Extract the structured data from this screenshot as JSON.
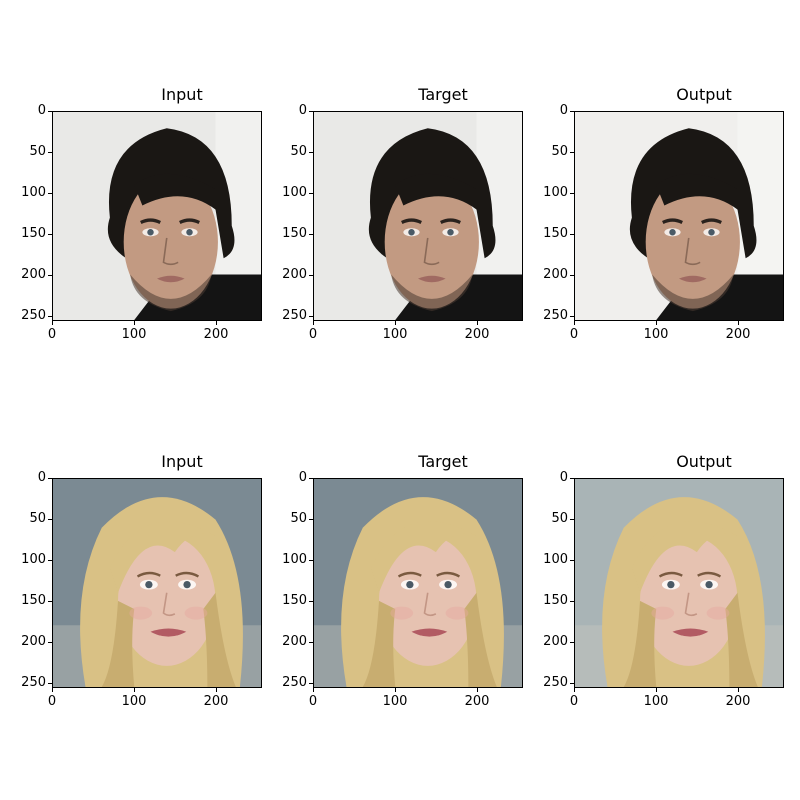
{
  "figure": {
    "rows": [
      {
        "subject": "dark-haired man",
        "panels": [
          {
            "title": "Input"
          },
          {
            "title": "Target"
          },
          {
            "title": "Output"
          }
        ]
      },
      {
        "subject": "blonde woman",
        "panels": [
          {
            "title": "Input"
          },
          {
            "title": "Target"
          },
          {
            "title": "Output"
          }
        ]
      }
    ],
    "axes": {
      "y_ticks": [
        "0",
        "50",
        "100",
        "150",
        "200",
        "250"
      ],
      "x_ticks": [
        "0",
        "100",
        "200"
      ]
    }
  },
  "colors": {
    "man_bg": "#e9e9e7",
    "man_hair": "#1a1714",
    "man_skin": "#c29a82",
    "man_shirt": "#141414",
    "woman_bg": "#7b8a93",
    "woman_hair": "#d9c185",
    "woman_skin": "#e6c2b1",
    "woman_lips": "#b25b63",
    "eyes": "#4a5a66"
  }
}
